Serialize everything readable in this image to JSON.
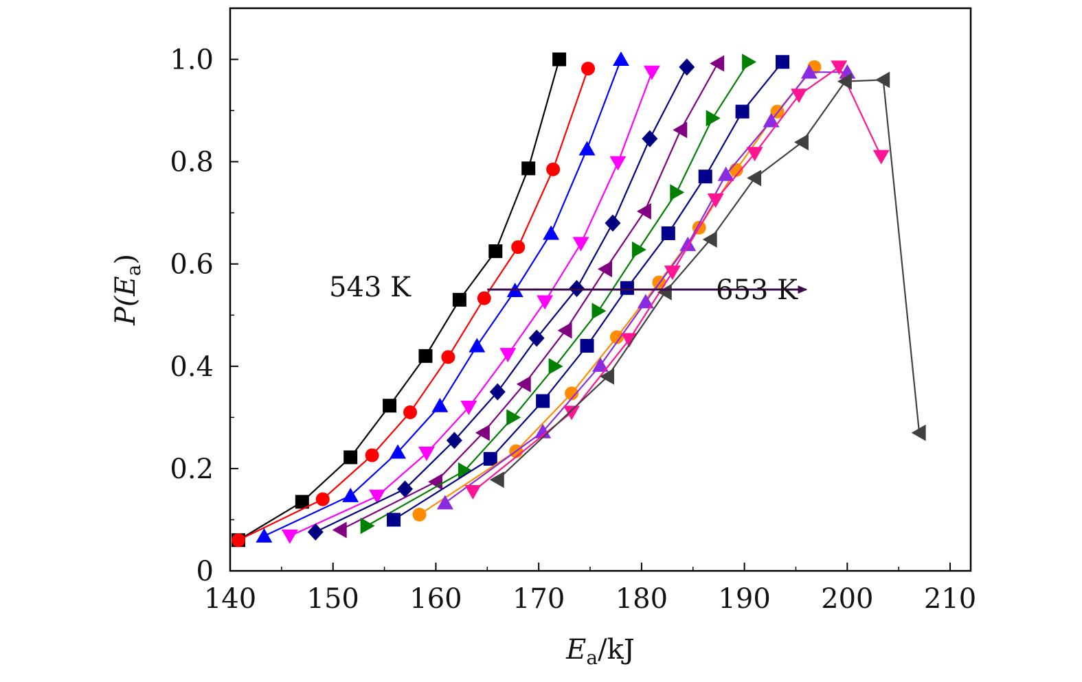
{
  "chart_data": {
    "type": "line",
    "xlabel": {
      "main": "E",
      "sub": "a",
      "suffix": "/kJ"
    },
    "ylabel": {
      "prefix": "P(",
      "main": "E",
      "sub": "a",
      "suffix": ")"
    },
    "xlim": [
      140,
      212
    ],
    "ylim": [
      0,
      1.1
    ],
    "xticks": [
      140,
      150,
      160,
      170,
      180,
      190,
      200,
      210
    ],
    "yticks": [
      0,
      0.2,
      0.4,
      0.6,
      0.8,
      1.0
    ],
    "ytick_labels": [
      "0",
      "0.2",
      "0.4",
      "0.6",
      "0.8",
      "1.0"
    ],
    "grid": false,
    "legend": "none",
    "annotations": {
      "start_label": "543 K",
      "end_label": "653 K",
      "arrow_y": 0.55,
      "arrow_x": [
        165,
        196
      ]
    },
    "series": [
      {
        "color": "#000000",
        "marker": "square",
        "points": [
          [
            140.8,
            0.06
          ],
          [
            147,
            0.135
          ],
          [
            151.7,
            0.222
          ],
          [
            155.5,
            0.323
          ],
          [
            159,
            0.42
          ],
          [
            162.3,
            0.53
          ],
          [
            165.8,
            0.625
          ],
          [
            169,
            0.787
          ],
          [
            172,
            1.0
          ]
        ]
      },
      {
        "color": "#ff0000",
        "marker": "circle",
        "points": [
          [
            140.8,
            0.06
          ],
          [
            149,
            0.14
          ],
          [
            153.8,
            0.226
          ],
          [
            157.5,
            0.31
          ],
          [
            161.2,
            0.418
          ],
          [
            164.7,
            0.533
          ],
          [
            168,
            0.633
          ],
          [
            171.4,
            0.785
          ],
          [
            174.8,
            0.982
          ]
        ]
      },
      {
        "color": "#0000ff",
        "marker": "triangle-up",
        "points": [
          [
            143.3,
            0.068
          ],
          [
            151.7,
            0.147
          ],
          [
            156.3,
            0.232
          ],
          [
            160.4,
            0.323
          ],
          [
            164,
            0.44
          ],
          [
            167.7,
            0.548
          ],
          [
            171.2,
            0.66
          ],
          [
            174.7,
            0.825
          ],
          [
            178,
            1.0
          ]
        ]
      },
      {
        "color": "#ff00ff",
        "marker": "triangle-down",
        "points": [
          [
            145.8,
            0.068
          ],
          [
            154.3,
            0.146
          ],
          [
            159.1,
            0.23
          ],
          [
            163.2,
            0.32
          ],
          [
            167,
            0.423
          ],
          [
            170.6,
            0.526
          ],
          [
            174.1,
            0.64
          ],
          [
            177.7,
            0.798
          ],
          [
            181,
            0.975
          ]
        ]
      },
      {
        "color": "#000080",
        "marker": "diamond",
        "points": [
          [
            148.3,
            0.076
          ],
          [
            157,
            0.16
          ],
          [
            161.8,
            0.255
          ],
          [
            166,
            0.35
          ],
          [
            169.8,
            0.455
          ],
          [
            173.7,
            0.552
          ],
          [
            177.2,
            0.68
          ],
          [
            180.8,
            0.845
          ],
          [
            184.4,
            0.985
          ]
        ]
      },
      {
        "color": "#800080",
        "marker": "triangle-left",
        "points": [
          [
            150.7,
            0.08
          ],
          [
            160,
            0.174
          ],
          [
            164.6,
            0.27
          ],
          [
            168.6,
            0.365
          ],
          [
            172.6,
            0.47
          ],
          [
            176.5,
            0.59
          ],
          [
            180.3,
            0.703
          ],
          [
            183.8,
            0.862
          ],
          [
            187.4,
            0.992
          ]
        ]
      },
      {
        "color": "#008000",
        "marker": "triangle-right",
        "points": [
          [
            153.3,
            0.088
          ],
          [
            162.8,
            0.196
          ],
          [
            167.5,
            0.3
          ],
          [
            171.6,
            0.4
          ],
          [
            175.8,
            0.508
          ],
          [
            179.7,
            0.628
          ],
          [
            183.4,
            0.74
          ],
          [
            186.9,
            0.885
          ],
          [
            190.4,
            0.995
          ]
        ]
      },
      {
        "color": "#00008b",
        "marker": "square",
        "points": [
          [
            155.9,
            0.1
          ],
          [
            165.3,
            0.219
          ],
          [
            170.4,
            0.332
          ],
          [
            174.7,
            0.44
          ],
          [
            178.6,
            0.553
          ],
          [
            182.6,
            0.66
          ],
          [
            186.2,
            0.771
          ],
          [
            189.8,
            0.898
          ],
          [
            193.7,
            0.995
          ]
        ]
      },
      {
        "color": "#ff8c00",
        "marker": "circle",
        "points": [
          [
            158.4,
            0.11
          ],
          [
            167.8,
            0.234
          ],
          [
            173.2,
            0.347
          ],
          [
            177.6,
            0.457
          ],
          [
            181.7,
            0.564
          ],
          [
            185.6,
            0.671
          ],
          [
            189.2,
            0.784
          ],
          [
            193.2,
            0.898
          ],
          [
            196.8,
            0.985
          ]
        ]
      },
      {
        "color": "#8a2be2",
        "marker": "triangle-up",
        "points": [
          [
            160.9,
            0.133
          ],
          [
            170.4,
            0.272
          ],
          [
            176,
            0.402
          ],
          [
            180.4,
            0.526
          ],
          [
            184.5,
            0.638
          ],
          [
            188.2,
            0.775
          ],
          [
            192.6,
            0.88
          ],
          [
            196.3,
            0.975
          ],
          [
            200,
            0.975
          ]
        ]
      },
      {
        "color": "#ff1493",
        "marker": "triangle-down",
        "points": [
          [
            163.6,
            0.155
          ],
          [
            173.2,
            0.31
          ],
          [
            178.8,
            0.452
          ],
          [
            183,
            0.584
          ],
          [
            187.2,
            0.725
          ],
          [
            191,
            0.816
          ],
          [
            195.3,
            0.93
          ],
          [
            199.2,
            0.985
          ],
          [
            203.3,
            0.81
          ]
        ]
      },
      {
        "color": "#404040",
        "marker": "triangle-left",
        "points": [
          [
            166,
            0.178
          ],
          [
            176.7,
            0.38
          ],
          [
            182.3,
            0.545
          ],
          [
            186.7,
            0.648
          ],
          [
            191,
            0.768
          ],
          [
            195.6,
            0.838
          ],
          [
            199.8,
            0.957
          ],
          [
            203.5,
            0.96
          ],
          [
            207,
            0.27
          ]
        ]
      }
    ]
  }
}
